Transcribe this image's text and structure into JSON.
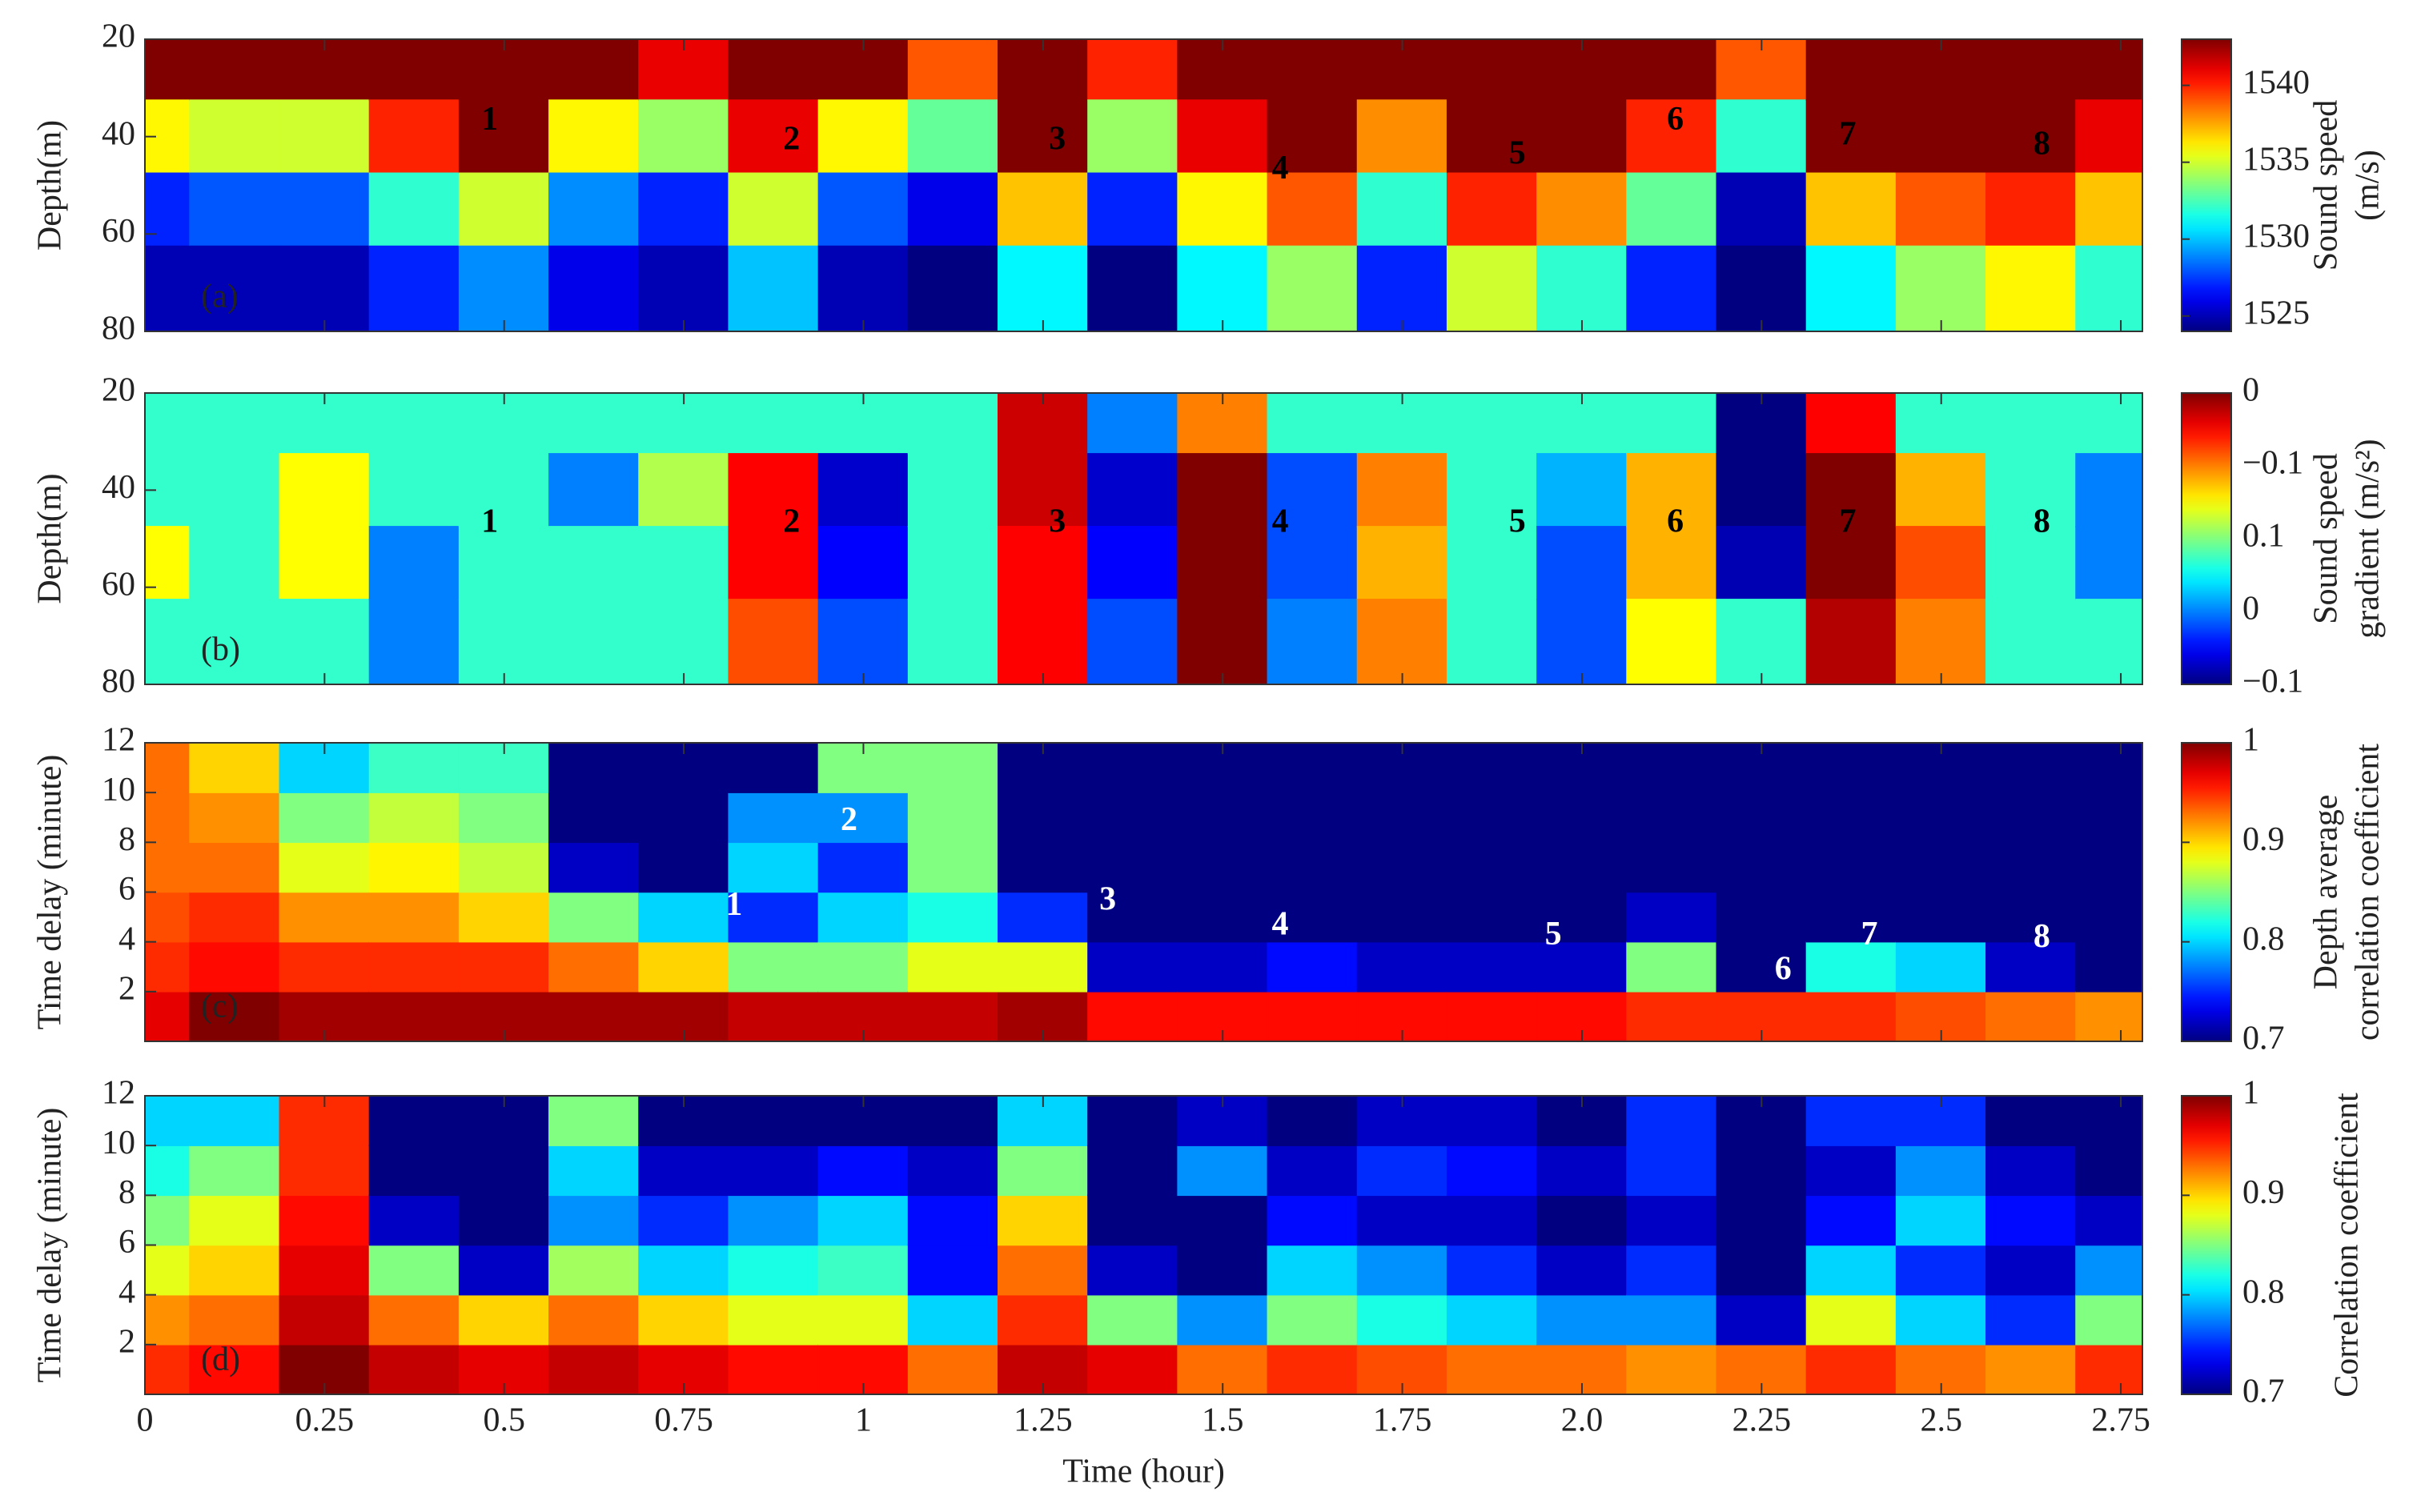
{
  "chart_data": [
    {
      "type": "contour",
      "panel_label": "(a)",
      "y_label": "Depth(m)",
      "colorbar_label": [
        "Sound speed",
        "(m/s)"
      ],
      "y_reversed": true,
      "xlim": [
        0,
        2.78
      ],
      "xticks": [
        0,
        0.25,
        0.5,
        0.75,
        1,
        1.25,
        1.5,
        1.75,
        {
          "value": 2,
          "label": "2.0"
        },
        2.25,
        2.5,
        2.75
      ],
      "ylim": [
        20,
        80
      ],
      "yticks": [
        20,
        40,
        60,
        80
      ],
      "zlim": [
        1524,
        1543
      ],
      "zticks": [
        1525,
        1530,
        1535,
        1540
      ],
      "x": [
        0,
        0.125,
        0.25,
        0.375,
        0.5,
        0.625,
        0.75,
        0.875,
        1,
        1.125,
        1.25,
        1.375,
        1.5,
        1.625,
        1.75,
        1.875,
        2,
        2.125,
        2.25,
        2.375,
        2.5,
        2.625,
        2.75
      ],
      "y": [
        25,
        40,
        55,
        70
      ],
      "z": [
        [
          1543,
          1536,
          1527,
          1525
        ],
        [
          1543,
          1535,
          1528,
          1525
        ],
        [
          1543,
          1535,
          1528,
          1525
        ],
        [
          1543,
          1540,
          1532,
          1527
        ],
        [
          1543,
          1543,
          1535,
          1529
        ],
        [
          1543,
          1536,
          1529,
          1526
        ],
        [
          1541,
          1534,
          1527,
          1525
        ],
        [
          1543,
          1541,
          1535,
          1530
        ],
        [
          1543,
          1536,
          1528,
          1525
        ],
        [
          1539,
          1533,
          1526,
          1524
        ],
        [
          1543,
          1543,
          1537,
          1531
        ],
        [
          1540,
          1534,
          1527,
          1524
        ],
        [
          1543,
          1541,
          1536,
          1531
        ],
        [
          1543,
          1543,
          1539,
          1534
        ],
        [
          1543,
          1538,
          1532,
          1527
        ],
        [
          1543,
          1543,
          1540,
          1535
        ],
        [
          1543,
          1543,
          1538,
          1532
        ],
        [
          1543,
          1540,
          1533,
          1527
        ],
        [
          1539,
          1532,
          1525,
          1524
        ],
        [
          1543,
          1543,
          1537,
          1531
        ],
        [
          1543,
          1543,
          1539,
          1534
        ],
        [
          1543,
          1543,
          1540,
          1536
        ],
        [
          1543,
          1541,
          1537,
          1532
        ]
      ],
      "annotation_color": "#000000",
      "annotations": [
        {
          "text": "1",
          "x": 0.48,
          "y": 37
        },
        {
          "text": "2",
          "x": 0.9,
          "y": 41
        },
        {
          "text": "3",
          "x": 1.27,
          "y": 41
        },
        {
          "text": "4",
          "x": 1.58,
          "y": 47
        },
        {
          "text": "5",
          "x": 1.91,
          "y": 44
        },
        {
          "text": "6",
          "x": 2.13,
          "y": 37
        },
        {
          "text": "7",
          "x": 2.37,
          "y": 40
        },
        {
          "text": "8",
          "x": 2.64,
          "y": 42
        }
      ]
    },
    {
      "type": "contour",
      "panel_label": "(b)",
      "y_label": "Depth(m)",
      "colorbar_label": [
        "Sound speed",
        "gradient (m/s²)"
      ],
      "y_reversed": true,
      "xlim": [
        0,
        2.78
      ],
      "xticks": [
        0,
        0.25,
        0.5,
        0.75,
        1,
        1.25,
        1.5,
        1.75,
        {
          "value": 2,
          "label": "2.0"
        },
        2.25,
        2.5,
        2.75
      ],
      "ylim": [
        20,
        80
      ],
      "yticks": [
        20,
        40,
        60,
        80
      ],
      "zlim": [
        -0.2,
        0.2
      ],
      "colorbar_labels": [
        "0",
        "−0.1",
        "0.1",
        "0",
        "−0.1"
      ],
      "x": [
        0,
        0.125,
        0.25,
        0.375,
        0.5,
        0.625,
        0.75,
        0.875,
        1,
        1.125,
        1.25,
        1.375,
        1.5,
        1.625,
        1.75,
        1.875,
        2,
        2.125,
        2.25,
        2.375,
        2.5,
        2.625,
        2.75
      ],
      "y": [
        25,
        40,
        55,
        70
      ],
      "z": [
        [
          -0.03,
          -0.03,
          0.05,
          -0.03
        ],
        [
          -0.03,
          -0.03,
          -0.03,
          -0.03
        ],
        [
          -0.03,
          0.05,
          0.05,
          -0.03
        ],
        [
          -0.03,
          -0.03,
          -0.1,
          -0.1
        ],
        [
          -0.03,
          -0.03,
          -0.03,
          -0.03
        ],
        [
          -0.03,
          -0.1,
          -0.03,
          -0.03
        ],
        [
          -0.03,
          0.02,
          -0.03,
          -0.03
        ],
        [
          -0.03,
          0.15,
          0.15,
          0.12
        ],
        [
          -0.03,
          -0.17,
          -0.15,
          -0.12
        ],
        [
          -0.03,
          -0.03,
          -0.03,
          -0.03
        ],
        [
          0.17,
          0.17,
          0.15,
          0.15
        ],
        [
          -0.1,
          -0.17,
          -0.15,
          -0.12
        ],
        [
          0.1,
          0.2,
          0.2,
          0.2
        ],
        [
          -0.03,
          -0.12,
          -0.12,
          -0.1
        ],
        [
          -0.03,
          0.1,
          0.08,
          0.1
        ],
        [
          -0.03,
          -0.03,
          -0.03,
          -0.03
        ],
        [
          -0.03,
          -0.08,
          -0.12,
          -0.12
        ],
        [
          -0.03,
          0.08,
          0.08,
          0.05
        ],
        [
          -0.2,
          -0.2,
          -0.18,
          -0.03
        ],
        [
          0.15,
          0.2,
          0.2,
          0.18
        ],
        [
          -0.03,
          0.08,
          0.12,
          0.1
        ],
        [
          -0.03,
          -0.03,
          -0.03,
          -0.03
        ],
        [
          -0.03,
          -0.1,
          -0.1,
          -0.03
        ]
      ],
      "annotation_color": "#000000",
      "annotations": [
        {
          "text": "1",
          "x": 0.48,
          "y": 47
        },
        {
          "text": "2",
          "x": 0.9,
          "y": 47
        },
        {
          "text": "3",
          "x": 1.27,
          "y": 47
        },
        {
          "text": "4",
          "x": 1.58,
          "y": 47
        },
        {
          "text": "5",
          "x": 1.91,
          "y": 47
        },
        {
          "text": "6",
          "x": 2.13,
          "y": 47
        },
        {
          "text": "7",
          "x": 2.37,
          "y": 47
        },
        {
          "text": "8",
          "x": 2.64,
          "y": 47
        }
      ]
    },
    {
      "type": "contour",
      "panel_label": "(c)",
      "y_label": "Time delay (minute)",
      "colorbar_label": [
        "Depth average",
        "correlation coefficient"
      ],
      "y_reversed": false,
      "xlim": [
        0,
        2.78
      ],
      "xticks": [
        0,
        0.25,
        0.5,
        0.75,
        1,
        1.25,
        1.5,
        1.75,
        {
          "value": 2,
          "label": "2.0"
        },
        2.25,
        2.5,
        2.75
      ],
      "ylim": [
        0,
        12
      ],
      "yticks": [
        2,
        4,
        6,
        8,
        10,
        12
      ],
      "zlim": [
        0.7,
        1
      ],
      "zticks": [
        0.7,
        0.8,
        0.9,
        1
      ],
      "x": [
        0,
        0.125,
        0.25,
        0.375,
        0.5,
        0.625,
        0.75,
        0.875,
        1,
        1.125,
        1.25,
        1.375,
        1.5,
        1.625,
        1.75,
        1.875,
        2,
        2.125,
        2.25,
        2.375,
        2.5,
        2.625,
        2.75
      ],
      "y": [
        1,
        3,
        5,
        7,
        9,
        11
      ],
      "z": [
        [
          0.97,
          0.95,
          0.94,
          0.93,
          0.93,
          0.93
        ],
        [
          1,
          0.96,
          0.95,
          0.93,
          0.92,
          0.9
        ],
        [
          0.99,
          0.95,
          0.92,
          0.88,
          0.85,
          0.8
        ],
        [
          0.99,
          0.95,
          0.92,
          0.89,
          0.87,
          0.83
        ],
        [
          0.99,
          0.95,
          0.9,
          0.87,
          0.85,
          0.83
        ],
        [
          0.99,
          0.93,
          0.85,
          0.72,
          0.7,
          0.7
        ],
        [
          0.99,
          0.9,
          0.8,
          0.7,
          0.7,
          0.7
        ],
        [
          0.98,
          0.85,
          0.75,
          0.8,
          0.78,
          0.7
        ],
        [
          0.98,
          0.85,
          0.8,
          0.75,
          0.78,
          0.85
        ],
        [
          0.98,
          0.88,
          0.82,
          0.85,
          0.85,
          0.85
        ],
        [
          0.99,
          0.88,
          0.75,
          0.7,
          0.7,
          0.7
        ],
        [
          0.96,
          0.72,
          0.7,
          0.7,
          0.7,
          0.7
        ],
        [
          0.96,
          0.72,
          0.7,
          0.7,
          0.7,
          0.7
        ],
        [
          0.96,
          0.74,
          0.7,
          0.7,
          0.7,
          0.7
        ],
        [
          0.96,
          0.72,
          0.7,
          0.7,
          0.7,
          0.7
        ],
        [
          0.96,
          0.72,
          0.7,
          0.7,
          0.7,
          0.7
        ],
        [
          0.96,
          0.72,
          0.7,
          0.7,
          0.7,
          0.7
        ],
        [
          0.95,
          0.85,
          0.72,
          0.7,
          0.7,
          0.7
        ],
        [
          0.95,
          0.7,
          0.7,
          0.7,
          0.7,
          0.7
        ],
        [
          0.95,
          0.82,
          0.7,
          0.7,
          0.7,
          0.7
        ],
        [
          0.94,
          0.8,
          0.7,
          0.7,
          0.7,
          0.7
        ],
        [
          0.93,
          0.72,
          0.7,
          0.7,
          0.7,
          0.7
        ],
        [
          0.92,
          0.7,
          0.7,
          0.7,
          0.7,
          0.7
        ]
      ],
      "annotation_color": "#ffffff",
      "annotations": [
        {
          "text": "1",
          "x": 0.82,
          "y": 5.4
        },
        {
          "text": "2",
          "x": 0.98,
          "y": 8.8
        },
        {
          "text": "3",
          "x": 1.34,
          "y": 5.6
        },
        {
          "text": "4",
          "x": 1.58,
          "y": 4.6
        },
        {
          "text": "5",
          "x": 1.96,
          "y": 4.2
        },
        {
          "text": "6",
          "x": 2.28,
          "y": 2.8
        },
        {
          "text": "7",
          "x": 2.4,
          "y": 4.2
        },
        {
          "text": "8",
          "x": 2.64,
          "y": 4.1
        }
      ]
    },
    {
      "type": "contour",
      "panel_label": "(d)",
      "y_label": "Time delay (minute)",
      "colorbar_label": [
        "Correlation coefficient"
      ],
      "xlabel": "Time (hour)",
      "y_reversed": false,
      "xlim": [
        0,
        2.78
      ],
      "xticks": [
        0,
        0.25,
        0.5,
        0.75,
        1,
        1.25,
        1.5,
        1.75,
        {
          "value": 2,
          "label": "2.0"
        },
        2.25,
        2.5,
        2.75
      ],
      "ylim": [
        0,
        12
      ],
      "yticks": [
        2,
        4,
        6,
        8,
        10,
        12
      ],
      "zlim": [
        0.7,
        1
      ],
      "zticks": [
        0.7,
        0.8,
        0.9,
        1
      ],
      "x": [
        0,
        0.125,
        0.25,
        0.375,
        0.5,
        0.625,
        0.75,
        0.875,
        1,
        1.125,
        1.25,
        1.375,
        1.5,
        1.625,
        1.75,
        1.875,
        2,
        2.125,
        2.25,
        2.375,
        2.5,
        2.625,
        2.75
      ],
      "y": [
        1,
        3,
        5,
        7,
        9,
        11
      ],
      "z": [
        [
          0.95,
          0.92,
          0.88,
          0.85,
          0.82,
          0.8
        ],
        [
          0.96,
          0.93,
          0.9,
          0.88,
          0.85,
          0.8
        ],
        [
          1,
          0.98,
          0.97,
          0.96,
          0.95,
          0.95
        ],
        [
          0.98,
          0.93,
          0.85,
          0.72,
          0.7,
          0.7
        ],
        [
          0.97,
          0.9,
          0.72,
          0.7,
          0.7,
          0.7
        ],
        [
          0.98,
          0.93,
          0.86,
          0.78,
          0.8,
          0.85
        ],
        [
          0.97,
          0.9,
          0.8,
          0.75,
          0.72,
          0.7
        ],
        [
          0.96,
          0.88,
          0.82,
          0.78,
          0.72,
          0.7
        ],
        [
          0.96,
          0.88,
          0.83,
          0.8,
          0.74,
          0.7
        ],
        [
          0.93,
          0.8,
          0.74,
          0.74,
          0.72,
          0.7
        ],
        [
          0.98,
          0.95,
          0.93,
          0.9,
          0.85,
          0.8
        ],
        [
          0.97,
          0.85,
          0.72,
          0.7,
          0.7,
          0.7
        ],
        [
          0.93,
          0.78,
          0.7,
          0.7,
          0.78,
          0.72
        ],
        [
          0.95,
          0.85,
          0.8,
          0.74,
          0.72,
          0.7
        ],
        [
          0.94,
          0.82,
          0.78,
          0.72,
          0.75,
          0.72
        ],
        [
          0.93,
          0.8,
          0.75,
          0.72,
          0.74,
          0.72
        ],
        [
          0.93,
          0.78,
          0.72,
          0.7,
          0.72,
          0.7
        ],
        [
          0.92,
          0.78,
          0.75,
          0.72,
          0.75,
          0.75
        ],
        [
          0.93,
          0.72,
          0.7,
          0.7,
          0.7,
          0.7
        ],
        [
          0.95,
          0.88,
          0.8,
          0.74,
          0.72,
          0.75
        ],
        [
          0.93,
          0.8,
          0.75,
          0.8,
          0.78,
          0.75
        ],
        [
          0.92,
          0.75,
          0.72,
          0.74,
          0.72,
          0.7
        ],
        [
          0.95,
          0.85,
          0.78,
          0.72,
          0.7,
          0.7
        ]
      ],
      "annotation_color": "#000000",
      "annotations": []
    }
  ]
}
